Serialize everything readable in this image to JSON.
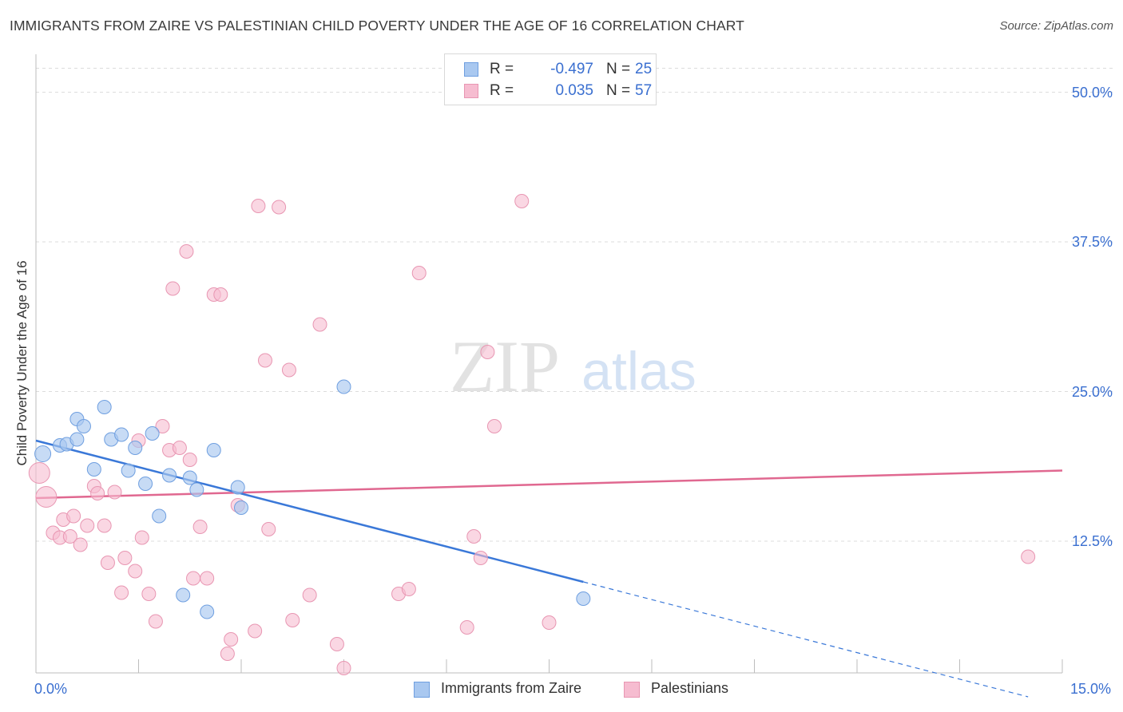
{
  "title": "IMMIGRANTS FROM ZAIRE VS PALESTINIAN CHILD POVERTY UNDER THE AGE OF 16 CORRELATION CHART",
  "source": "Source: ZipAtlas.com",
  "watermark": {
    "zip": "ZIP",
    "atlas": "atlas"
  },
  "colors": {
    "blue": "#3a78d8",
    "pink": "#e06890",
    "blue_fill": "#a9c8f0",
    "pink_fill": "#f6bcd0",
    "tick_text": "#3a6fd0"
  },
  "legend": {
    "rows": [
      {
        "r_label": "R =",
        "r_value": "-0.497",
        "n_label": "N =",
        "n_value": "25"
      },
      {
        "r_label": "R =",
        "r_value": "0.035",
        "n_label": "N =",
        "n_value": "57"
      }
    ]
  },
  "chart_data": {
    "type": "scatter",
    "title": "IMMIGRANTS FROM ZAIRE VS PALESTINIAN CHILD POVERTY UNDER THE AGE OF 16 CORRELATION CHART",
    "xlabel": "",
    "ylabel": "Child Poverty Under the Age of 16",
    "xlim": [
      0,
      15
    ],
    "ylim": [
      1.5,
      52.5
    ],
    "x_tick_labels": [
      "0.0%",
      "15.0%"
    ],
    "y_ticks": [
      12.5,
      25.0,
      37.5,
      50.0
    ],
    "y_tick_labels": [
      "12.5%",
      "25.0%",
      "37.5%",
      "50.0%"
    ],
    "grid": true,
    "legend_position": "top-center",
    "series": [
      {
        "name": "Immigrants from Zaire",
        "color": "#3a78d8",
        "points": [
          [
            0.1,
            19.8
          ],
          [
            0.35,
            20.5
          ],
          [
            0.45,
            20.6
          ],
          [
            0.6,
            21.0
          ],
          [
            0.6,
            22.7
          ],
          [
            0.7,
            22.1
          ],
          [
            0.85,
            18.5
          ],
          [
            1.0,
            23.7
          ],
          [
            1.1,
            21.0
          ],
          [
            1.25,
            21.4
          ],
          [
            1.35,
            18.4
          ],
          [
            1.45,
            20.3
          ],
          [
            1.6,
            17.3
          ],
          [
            1.7,
            21.5
          ],
          [
            1.8,
            14.6
          ],
          [
            1.95,
            18.0
          ],
          [
            2.15,
            8.0
          ],
          [
            2.25,
            17.8
          ],
          [
            2.35,
            16.8
          ],
          [
            2.5,
            6.6
          ],
          [
            2.6,
            20.1
          ],
          [
            2.95,
            17.0
          ],
          [
            3.0,
            15.3
          ],
          [
            4.5,
            25.4
          ],
          [
            8.0,
            7.7
          ]
        ],
        "trend": {
          "x": [
            0,
            8.0
          ],
          "y": [
            20.9,
            9.1
          ]
        },
        "trend_dashed": {
          "x": [
            8.0,
            14.5
          ],
          "y": [
            9.1,
            -0.5
          ]
        }
      },
      {
        "name": "Palestinians",
        "color": "#e06890",
        "points": [
          [
            0.05,
            18.2
          ],
          [
            0.15,
            16.2
          ],
          [
            0.25,
            13.2
          ],
          [
            0.35,
            12.8
          ],
          [
            0.4,
            14.3
          ],
          [
            0.5,
            12.9
          ],
          [
            0.55,
            14.6
          ],
          [
            0.65,
            12.2
          ],
          [
            0.75,
            13.8
          ],
          [
            0.85,
            17.1
          ],
          [
            0.9,
            16.5
          ],
          [
            1.0,
            13.8
          ],
          [
            1.05,
            10.7
          ],
          [
            1.15,
            16.6
          ],
          [
            1.25,
            8.2
          ],
          [
            1.3,
            11.1
          ],
          [
            1.45,
            10.0
          ],
          [
            1.5,
            20.9
          ],
          [
            1.55,
            12.8
          ],
          [
            1.65,
            8.1
          ],
          [
            1.75,
            5.8
          ],
          [
            1.85,
            22.1
          ],
          [
            1.95,
            20.1
          ],
          [
            2.0,
            33.6
          ],
          [
            2.1,
            20.3
          ],
          [
            2.2,
            36.7
          ],
          [
            2.25,
            19.3
          ],
          [
            2.3,
            9.4
          ],
          [
            2.4,
            13.7
          ],
          [
            2.5,
            9.4
          ],
          [
            2.6,
            33.1
          ],
          [
            2.7,
            33.1
          ],
          [
            2.8,
            3.1
          ],
          [
            2.85,
            4.3
          ],
          [
            2.95,
            15.5
          ],
          [
            3.2,
            5.0
          ],
          [
            3.25,
            40.5
          ],
          [
            3.35,
            27.6
          ],
          [
            3.4,
            13.5
          ],
          [
            3.55,
            40.4
          ],
          [
            3.7,
            26.8
          ],
          [
            3.75,
            5.9
          ],
          [
            4.0,
            8.0
          ],
          [
            4.15,
            30.6
          ],
          [
            4.4,
            3.9
          ],
          [
            4.5,
            1.9
          ],
          [
            5.3,
            8.1
          ],
          [
            5.45,
            8.5
          ],
          [
            5.6,
            34.9
          ],
          [
            6.3,
            5.3
          ],
          [
            6.4,
            12.9
          ],
          [
            6.5,
            11.1
          ],
          [
            6.6,
            28.3
          ],
          [
            6.7,
            22.1
          ],
          [
            7.1,
            40.9
          ],
          [
            7.5,
            5.7
          ],
          [
            14.5,
            11.2
          ]
        ],
        "trend": {
          "x": [
            0,
            15
          ],
          "y": [
            16.1,
            18.4
          ]
        }
      }
    ]
  }
}
